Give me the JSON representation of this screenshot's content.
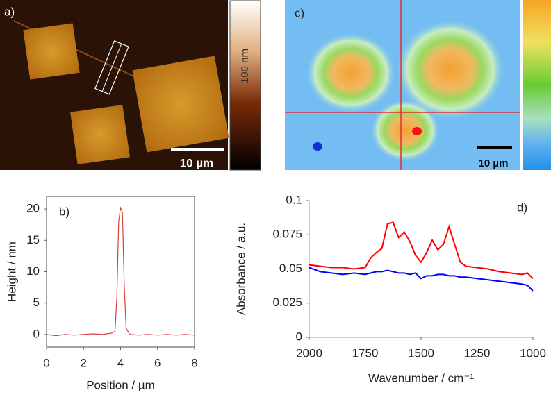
{
  "panel_a": {
    "label": "a)",
    "colorbar_label": "100 nm",
    "scalebar": "10 µm"
  },
  "panel_c": {
    "label": "c)",
    "scalebar": "10 µm"
  },
  "chart_data": [
    {
      "type": "line",
      "label": "b)",
      "xlabel": "Position / µm",
      "ylabel": "Height / nm",
      "xlim": [
        0,
        8
      ],
      "xticks": [
        0,
        2,
        4,
        6,
        8
      ],
      "ylim": [
        -2,
        22
      ],
      "yticks": [
        0,
        5,
        10,
        15,
        20
      ],
      "frame": true,
      "x": [
        0,
        0.5,
        1,
        1.5,
        2,
        2.5,
        3,
        3.5,
        3.7,
        3.8,
        3.9,
        4.0,
        4.1,
        4.2,
        4.3,
        4.5,
        5,
        5.5,
        6,
        6.5,
        7,
        7.5,
        8
      ],
      "series": [
        {
          "color": "#d8403a",
          "values": [
            0,
            -0.2,
            0,
            -0.1,
            0,
            0.1,
            0,
            0.2,
            0.5,
            6,
            18,
            20.2,
            19.5,
            8,
            1,
            0,
            -0.1,
            0,
            -0.1,
            0,
            -0.1,
            0,
            -0.1
          ]
        }
      ]
    },
    {
      "type": "line",
      "label": "d)",
      "xlabel": "Wavenumber / cm⁻¹",
      "ylabel": "Absorbance / a.u.",
      "xlim": [
        2000,
        1000
      ],
      "xticks": [
        2000,
        1750,
        1500,
        1250,
        1000
      ],
      "ylim": [
        0,
        0.1
      ],
      "yticks": [
        0,
        0.025,
        0.05,
        0.075,
        0.1
      ],
      "frame": false,
      "x": [
        2000,
        1950,
        1900,
        1850,
        1800,
        1750,
        1725,
        1700,
        1675,
        1650,
        1625,
        1600,
        1575,
        1550,
        1525,
        1500,
        1475,
        1450,
        1425,
        1400,
        1375,
        1350,
        1325,
        1300,
        1250,
        1200,
        1150,
        1100,
        1050,
        1025,
        1000
      ],
      "series": [
        {
          "color": "#ff0000",
          "values": [
            0.053,
            0.052,
            0.051,
            0.051,
            0.05,
            0.051,
            0.058,
            0.062,
            0.065,
            0.083,
            0.084,
            0.073,
            0.077,
            0.07,
            0.06,
            0.055,
            0.062,
            0.071,
            0.064,
            0.068,
            0.081,
            0.068,
            0.055,
            0.052,
            0.051,
            0.05,
            0.048,
            0.047,
            0.046,
            0.047,
            0.043
          ]
        },
        {
          "color": "#0000ff",
          "values": [
            0.051,
            0.048,
            0.047,
            0.046,
            0.047,
            0.046,
            0.047,
            0.048,
            0.048,
            0.049,
            0.048,
            0.047,
            0.047,
            0.046,
            0.047,
            0.043,
            0.045,
            0.045,
            0.046,
            0.046,
            0.045,
            0.045,
            0.044,
            0.044,
            0.043,
            0.042,
            0.041,
            0.04,
            0.039,
            0.038,
            0.034
          ]
        }
      ]
    }
  ]
}
